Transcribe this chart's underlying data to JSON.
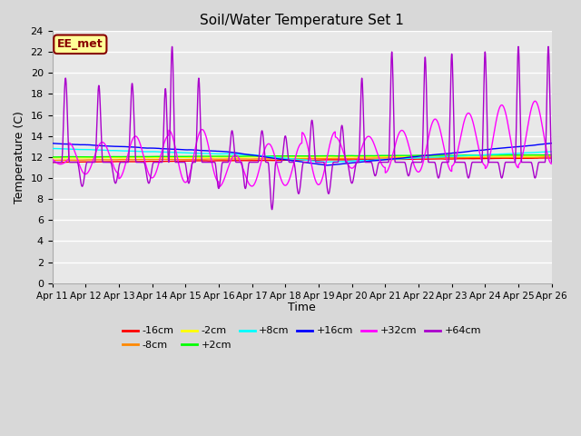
{
  "title": "Soil/Water Temperature Set 1",
  "xlabel": "Time",
  "ylabel": "Temperature (C)",
  "ylim": [
    0,
    24
  ],
  "yticks": [
    0,
    2,
    4,
    6,
    8,
    10,
    12,
    14,
    16,
    18,
    20,
    22,
    24
  ],
  "xlim": [
    0,
    15
  ],
  "xtick_labels": [
    "Apr 11",
    "Apr 12",
    "Apr 13",
    "Apr 14",
    "Apr 15",
    "Apr 16",
    "Apr 17",
    "Apr 18",
    "Apr 19",
    "Apr 20",
    "Apr 21",
    "Apr 22",
    "Apr 23",
    "Apr 24",
    "Apr 25",
    "Apr 26"
  ],
  "series_colors": {
    "-16cm": "#ff0000",
    "-8cm": "#ff8800",
    "-2cm": "#ffff00",
    "+2cm": "#00ff00",
    "+8cm": "#00ffff",
    "+16cm": "#0000ff",
    "+32cm": "#ff00ff",
    "+64cm": "#aa00cc"
  },
  "annotation_text": "EE_met",
  "annotation_bg": "#ffff99",
  "annotation_border": "#880000",
  "background_color": "#e8e8e8",
  "grid_color": "#ffffff",
  "fig_bg": "#d8d8d8"
}
